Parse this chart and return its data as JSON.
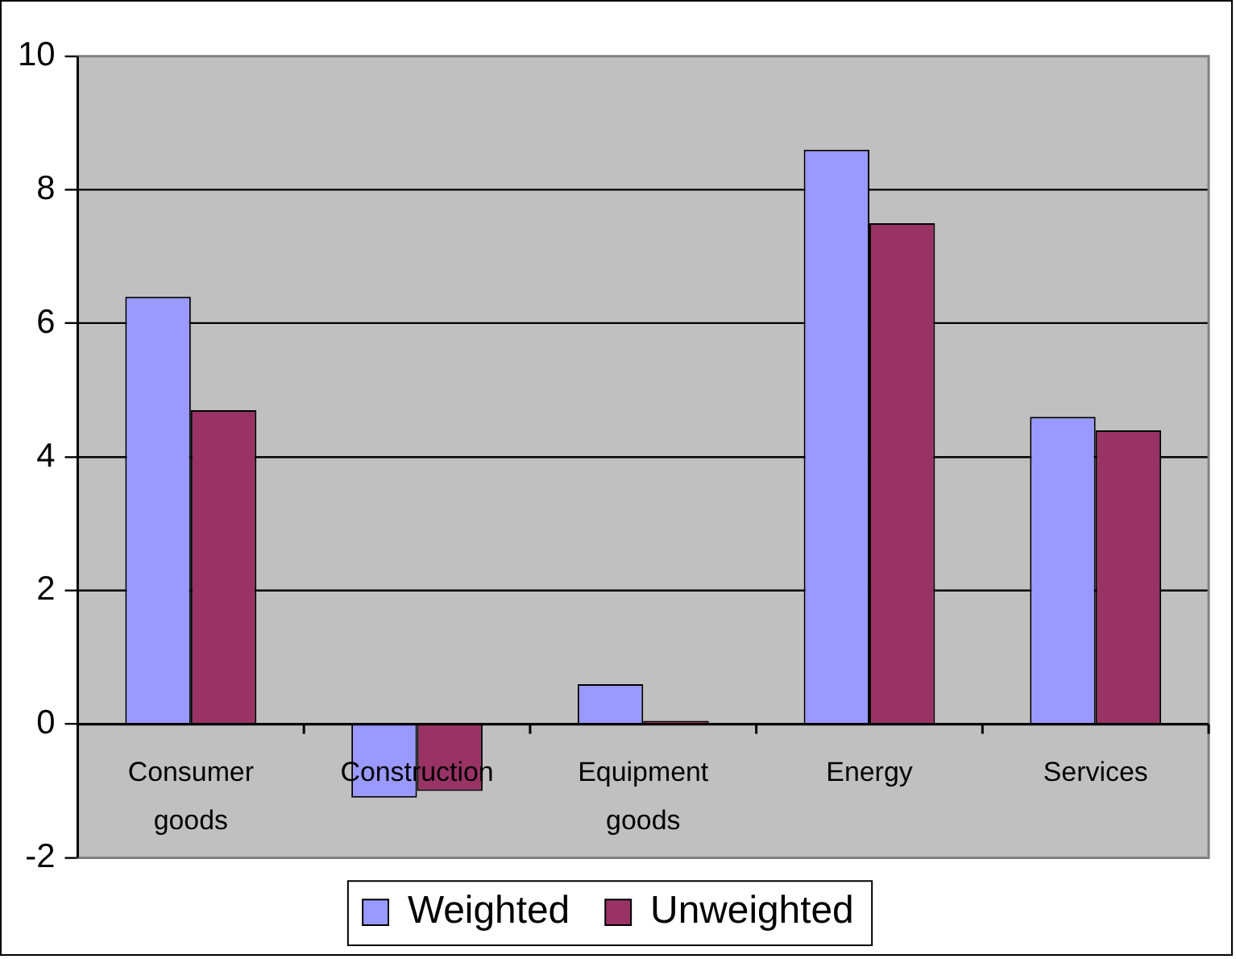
{
  "chart_data": {
    "type": "bar",
    "categories": [
      "Consumer goods",
      "Construction",
      "Equipment goods",
      "Energy",
      "Services"
    ],
    "series": [
      {
        "name": "Weighted",
        "color": "#9999ff",
        "values": [
          6.4,
          -1.1,
          0.6,
          8.6,
          4.6
        ]
      },
      {
        "name": "Unweighted",
        "color": "#993366",
        "values": [
          4.7,
          -1.0,
          0.05,
          7.5,
          4.4
        ]
      }
    ],
    "ylim": [
      -2,
      10
    ],
    "yticks": [
      -2,
      0,
      2,
      4,
      6,
      8,
      10
    ],
    "grid": "y",
    "legend": "bottom"
  }
}
